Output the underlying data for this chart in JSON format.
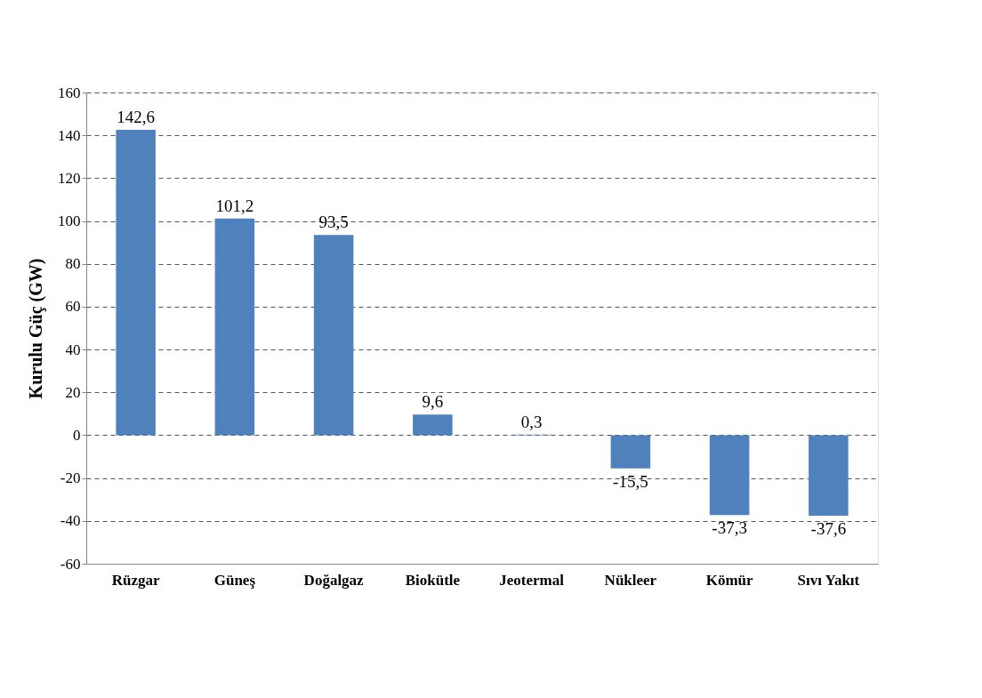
{
  "chart_data": {
    "type": "bar",
    "ylabel": "Kurulu Güç (GW)",
    "categories": [
      "Rüzgar",
      "Güneş",
      "Doğalgaz",
      "Biokütle",
      "Jeotermal",
      "Nükleer",
      "Kömür",
      "Sıvı Yakıt"
    ],
    "values": [
      142.6,
      101.2,
      93.5,
      9.6,
      0.3,
      -15.5,
      -37.3,
      -37.6
    ],
    "value_labels": [
      "142,6",
      "101,2",
      "93,5",
      "9,6",
      "0,3",
      "-15,5",
      "-37,3",
      "-37,6"
    ],
    "color": "#4f81bd",
    "ylim": [
      -60,
      160
    ],
    "yticks": [
      -60,
      -40,
      -20,
      0,
      20,
      40,
      60,
      80,
      100,
      120,
      140,
      160
    ],
    "grid": "y"
  }
}
